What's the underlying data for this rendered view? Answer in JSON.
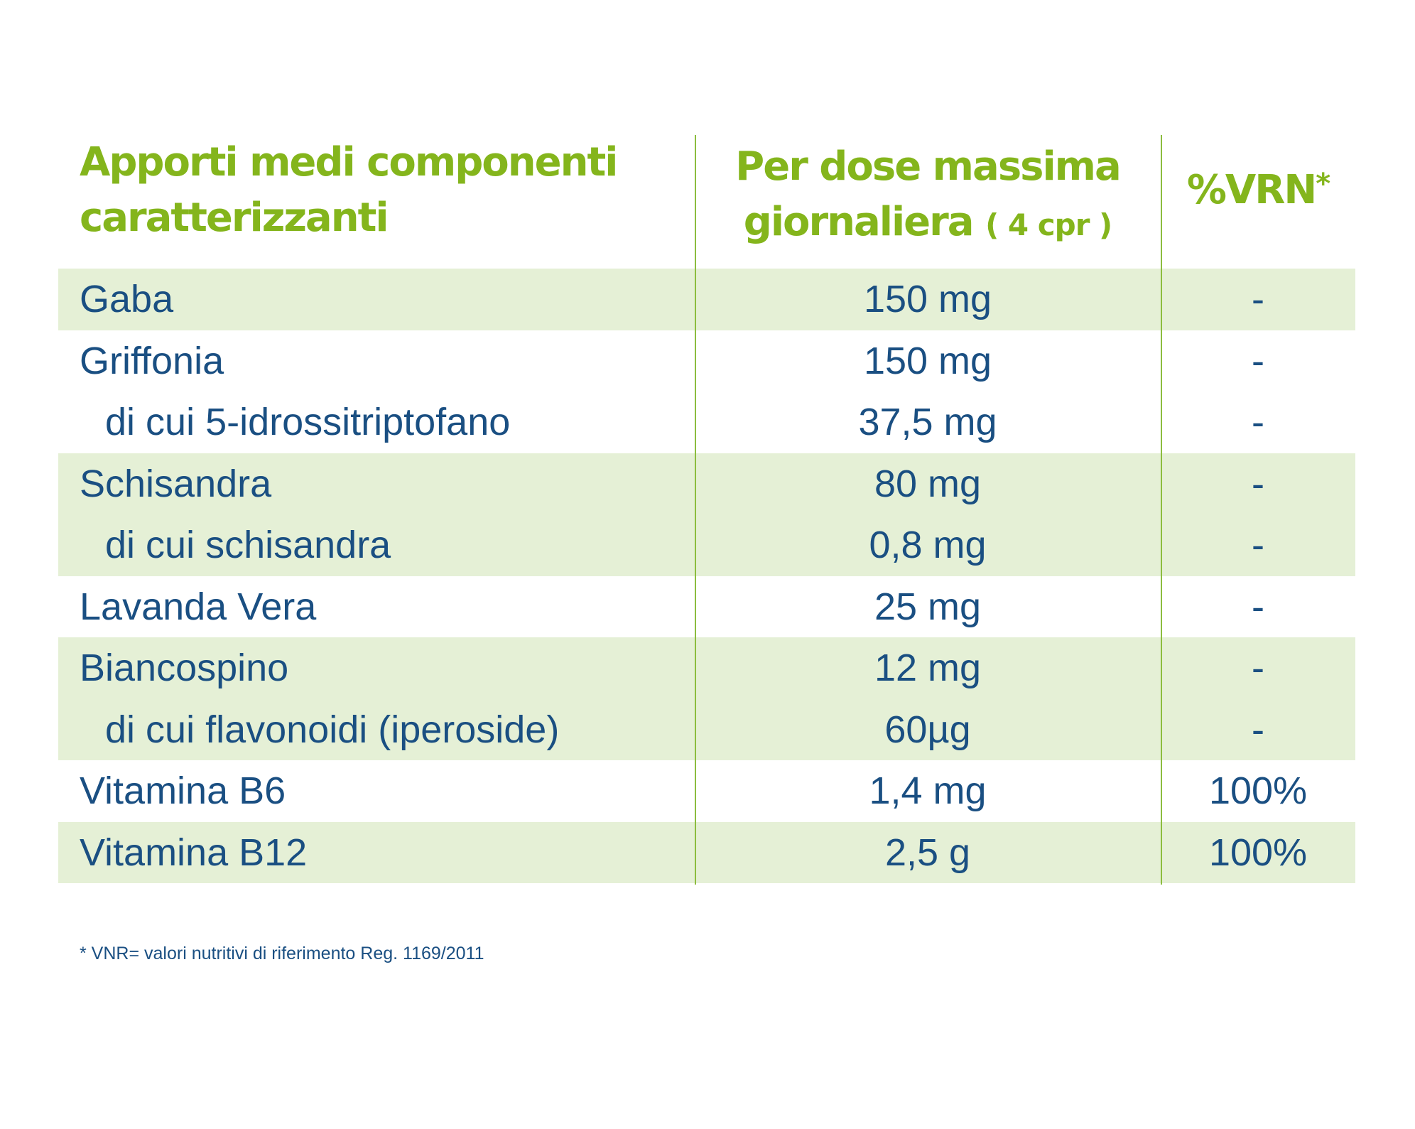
{
  "header": {
    "col1": "Apporti medi componenti caratterizzanti",
    "col2_main": "Per dose massima giornaliera",
    "col2_note": "( 4 cpr )",
    "col3_main": "%VRN",
    "col3_star": "*"
  },
  "rows": [
    {
      "name": "Gaba",
      "dose": "150 mg",
      "vrn": "-"
    },
    {
      "name": "Griffonia",
      "dose": "150 mg",
      "vrn": "-"
    },
    {
      "name": "di cui 5-idrossitriptofano",
      "dose": "37,5 mg",
      "vrn": "-"
    },
    {
      "name": "Schisandra",
      "dose": "80 mg",
      "vrn": "-"
    },
    {
      "name": "di cui schisandra",
      "dose": "0,8 mg",
      "vrn": "-"
    },
    {
      "name": "Lavanda Vera",
      "dose": "25 mg",
      "vrn": "-"
    },
    {
      "name": "Biancospino",
      "dose": "12 mg",
      "vrn": "-"
    },
    {
      "name": "di cui flavonoidi (iperoside)",
      "dose": "60µg",
      "vrn": "-"
    },
    {
      "name": "Vitamina B6",
      "dose": "1,4 mg",
      "vrn": "100%"
    },
    {
      "name": "Vitamina B12",
      "dose": "2,5 g",
      "vrn": "100%"
    }
  ],
  "footnote": "* VNR= valori nutritivi di riferimento Reg. 1169/2011",
  "colors": {
    "header_green": "#84b51c",
    "text_blue": "#1a4f82",
    "row_shade": "#e5f0d6",
    "divider": "#8cbd3f"
  }
}
